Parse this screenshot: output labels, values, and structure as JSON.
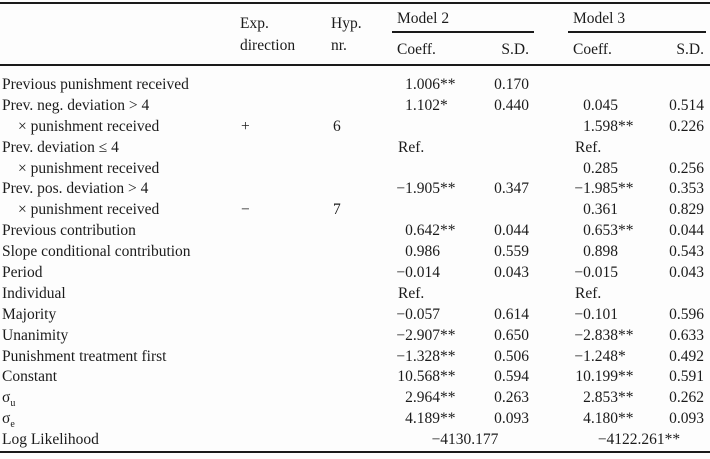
{
  "header": {
    "exp_line1": "Exp.",
    "exp_line2": "direction",
    "hyp_line1": "Hyp.",
    "hyp_line2": "nr.",
    "model2_label": "Model 2",
    "model3_label": "Model 3",
    "coeff_label": "Coeff.",
    "sd_label": "S.D."
  },
  "rows": [
    {
      "label": "Previous punishment received",
      "indent": false,
      "exp": "",
      "hyp": "",
      "m2_coeff": "1.006**",
      "m2_sd": "0.170",
      "m3_coeff": "",
      "m3_sd": ""
    },
    {
      "label": "Prev. neg. deviation > 4",
      "indent": false,
      "exp": "",
      "hyp": "",
      "m2_coeff": "1.102*",
      "m2_sd": "0.440",
      "m3_coeff": "0.045",
      "m3_sd": "0.514"
    },
    {
      "label": "× punishment received",
      "indent": true,
      "exp": "+",
      "hyp": "6",
      "m2_coeff": "",
      "m2_sd": "",
      "m3_coeff": "1.598**",
      "m3_sd": "0.226"
    },
    {
      "label": "Prev. deviation ≤ 4",
      "indent": false,
      "exp": "",
      "hyp": "",
      "m2_coeff": "Ref.",
      "m2_sd": "",
      "m3_coeff": "Ref.",
      "m3_sd": ""
    },
    {
      "label": "× punishment received",
      "indent": true,
      "exp": "",
      "hyp": "",
      "m2_coeff": "",
      "m2_sd": "",
      "m3_coeff": "0.285",
      "m3_sd": "0.256"
    },
    {
      "label": "Prev. pos. deviation > 4",
      "indent": false,
      "exp": "",
      "hyp": "",
      "m2_coeff": "−1.905**",
      "m2_sd": "0.347",
      "m3_coeff": "−1.985**",
      "m3_sd": "0.353"
    },
    {
      "label": "× punishment received",
      "indent": true,
      "exp": "−",
      "hyp": "7",
      "m2_coeff": "",
      "m2_sd": "",
      "m3_coeff": "0.361",
      "m3_sd": "0.829"
    },
    {
      "label": "Previous contribution",
      "indent": false,
      "exp": "",
      "hyp": "",
      "m2_coeff": "0.642**",
      "m2_sd": "0.044",
      "m3_coeff": "0.653**",
      "m3_sd": "0.044"
    },
    {
      "label": "Slope conditional contribution",
      "indent": false,
      "exp": "",
      "hyp": "",
      "m2_coeff": "0.986",
      "m2_sd": "0.559",
      "m3_coeff": "0.898",
      "m3_sd": "0.543"
    },
    {
      "label": "Period",
      "indent": false,
      "exp": "",
      "hyp": "",
      "m2_coeff": "−0.014",
      "m2_sd": "0.043",
      "m3_coeff": "−0.015",
      "m3_sd": "0.043"
    },
    {
      "label": "Individual",
      "indent": false,
      "exp": "",
      "hyp": "",
      "m2_coeff": "Ref.",
      "m2_sd": "",
      "m3_coeff": "Ref.",
      "m3_sd": ""
    },
    {
      "label": "Majority",
      "indent": false,
      "exp": "",
      "hyp": "",
      "m2_coeff": "−0.057",
      "m2_sd": "0.614",
      "m3_coeff": "−0.101",
      "m3_sd": "0.596"
    },
    {
      "label": "Unanimity",
      "indent": false,
      "exp": "",
      "hyp": "",
      "m2_coeff": "−2.907**",
      "m2_sd": "0.650",
      "m3_coeff": "−2.838**",
      "m3_sd": "0.633"
    },
    {
      "label": "Punishment treatment first",
      "indent": false,
      "exp": "",
      "hyp": "",
      "m2_coeff": "−1.328**",
      "m2_sd": "0.506",
      "m3_coeff": "−1.248*",
      "m3_sd": "0.492"
    },
    {
      "label": "Constant",
      "indent": false,
      "exp": "",
      "hyp": "",
      "m2_coeff": "10.568**",
      "m2_sd": "0.594",
      "m3_coeff": "10.199**",
      "m3_sd": "0.591"
    },
    {
      "label": "σ",
      "sub": "u",
      "indent": false,
      "exp": "",
      "hyp": "",
      "m2_coeff": "2.964**",
      "m2_sd": "0.263",
      "m3_coeff": "2.853**",
      "m3_sd": "0.262"
    },
    {
      "label": "σ",
      "sub": "e",
      "indent": false,
      "exp": "",
      "hyp": "",
      "m2_coeff": "4.189**",
      "m2_sd": "0.093",
      "m3_coeff": "4.180**",
      "m3_sd": "0.093"
    },
    {
      "label": "Log Likelihood",
      "indent": false,
      "m2_span": "−4130.177",
      "m3_span": "−4122.261**"
    }
  ]
}
